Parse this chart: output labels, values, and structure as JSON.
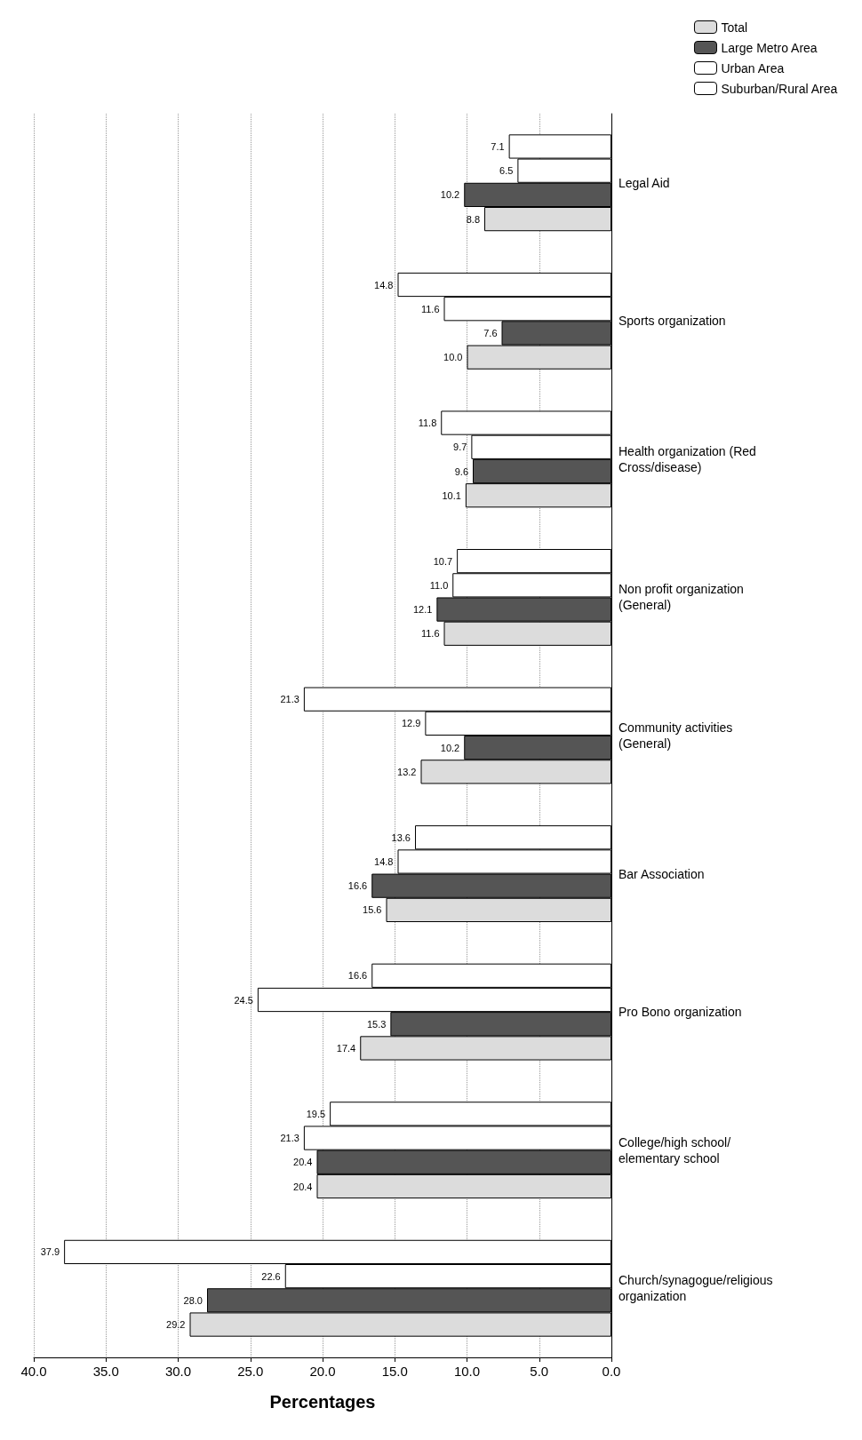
{
  "chart_data": {
    "type": "bar",
    "orientation": "horizontal",
    "xlabel": "Percentages",
    "categories": [
      "Legal Aid",
      "Sports organization",
      "Health organization (Red Cross/disease)",
      "Non profit organization (General)",
      "Community activities (General)",
      "Bar Association",
      "Pro Bono organization",
      "College/high school/elementary school",
      "Church/synagogue/religious organization"
    ],
    "series": [
      {
        "name": "Total",
        "color": "#dcdcdc",
        "values": [
          8.8,
          10.0,
          10.1,
          11.6,
          13.2,
          15.6,
          17.4,
          20.4,
          29.2
        ],
        "value_labels": [
          "8.8",
          "10.0",
          "10.1",
          "11.6",
          "13.2",
          "15.6",
          "17.4",
          "20.4",
          "29.2"
        ]
      },
      {
        "name": "Large Metro Area",
        "color": "#555555",
        "values": [
          10.2,
          7.6,
          9.6,
          12.1,
          10.2,
          16.6,
          15.3,
          20.4,
          28.0
        ],
        "value_labels": [
          "10.2",
          "7.6",
          "9.6",
          "12.1",
          "10.2",
          "16.6",
          "15.3",
          "20.4",
          "28.0"
        ]
      },
      {
        "name": "Urban Area",
        "color": "#ffffff",
        "values": [
          6.5,
          11.6,
          9.7,
          11.0,
          12.9,
          14.8,
          24.5,
          21.3,
          22.6
        ],
        "value_labels": [
          "6.5",
          "11.6",
          "9.7",
          "11.0",
          "12.9",
          "14.8",
          "24.5",
          "21.3",
          "22.6"
        ]
      },
      {
        "name": "Suburban/Rural Area",
        "color": "#ffffff",
        "values": [
          7.1,
          14.8,
          11.8,
          10.7,
          21.3,
          13.6,
          16.6,
          19.5,
          37.9
        ],
        "value_labels": [
          "7.1",
          "14.8",
          "11.8",
          "10.7",
          "21.3",
          "13.6",
          "16.6",
          "19.5",
          "37.9"
        ]
      }
    ],
    "xlim": [
      40,
      0
    ],
    "xticks": [
      {
        "value": 40,
        "label": "40.0"
      },
      {
        "value": 35,
        "label": "35.0"
      },
      {
        "value": 30,
        "label": "30.0"
      },
      {
        "value": 25,
        "label": "25.0"
      },
      {
        "value": 20,
        "label": "20.0"
      },
      {
        "value": 15,
        "label": "15.0"
      },
      {
        "value": 10,
        "label": "10.0"
      },
      {
        "value": 5,
        "label": "5.0"
      },
      {
        "value": 0,
        "label": "0.0"
      }
    ],
    "grid": "x",
    "legend": "top right"
  }
}
